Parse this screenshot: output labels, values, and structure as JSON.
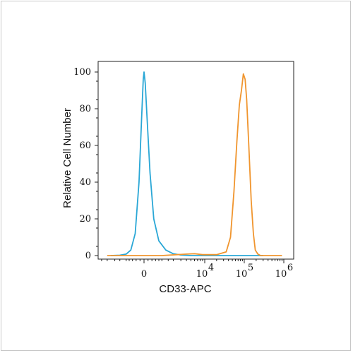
{
  "chart_data": {
    "type": "line",
    "title": "",
    "xlabel": "CD33-APC",
    "ylabel": "Relative Cell Number",
    "x_scale": "biexponential",
    "ylim": [
      0,
      100
    ],
    "y_ticks": [
      "0",
      "20",
      "40",
      "60",
      "80",
      "100"
    ],
    "x_ticks": [
      {
        "label": "0",
        "exp": ""
      },
      {
        "label": "10",
        "exp": "4"
      },
      {
        "label": "10",
        "exp": "5"
      },
      {
        "label": "10",
        "exp": "6"
      }
    ],
    "series": [
      {
        "color": "#2aa7d6",
        "points": [
          [
            -2500,
            0
          ],
          [
            -1500,
            0.2
          ],
          [
            -1000,
            0.8
          ],
          [
            -700,
            3
          ],
          [
            -450,
            12
          ],
          [
            -250,
            40
          ],
          [
            -120,
            75
          ],
          [
            -40,
            96
          ],
          [
            0,
            100
          ],
          [
            60,
            94
          ],
          [
            150,
            75
          ],
          [
            300,
            45
          ],
          [
            500,
            20
          ],
          [
            800,
            8
          ],
          [
            1300,
            3
          ],
          [
            2000,
            1
          ],
          [
            3000,
            0.3
          ],
          [
            5000,
            0
          ],
          [
            20000,
            0
          ],
          [
            100000,
            0
          ],
          [
            200000,
            0
          ],
          [
            300000,
            0
          ]
        ]
      },
      {
        "color": "#f0952e",
        "points": [
          [
            -3000,
            0
          ],
          [
            1000,
            0
          ],
          [
            4000,
            0.8
          ],
          [
            6000,
            1
          ],
          [
            9000,
            0.5
          ],
          [
            20000,
            0.5
          ],
          [
            35000,
            2
          ],
          [
            45000,
            10
          ],
          [
            55000,
            35
          ],
          [
            65000,
            62
          ],
          [
            75000,
            82
          ],
          [
            85000,
            90
          ],
          [
            95000,
            99
          ],
          [
            105000,
            96
          ],
          [
            115000,
            85
          ],
          [
            130000,
            60
          ],
          [
            150000,
            30
          ],
          [
            170000,
            12
          ],
          [
            190000,
            3
          ],
          [
            220000,
            0.8
          ],
          [
            260000,
            0
          ],
          [
            400000,
            0
          ],
          [
            900000,
            0
          ]
        ]
      }
    ],
    "grid": false,
    "legend": "none"
  }
}
